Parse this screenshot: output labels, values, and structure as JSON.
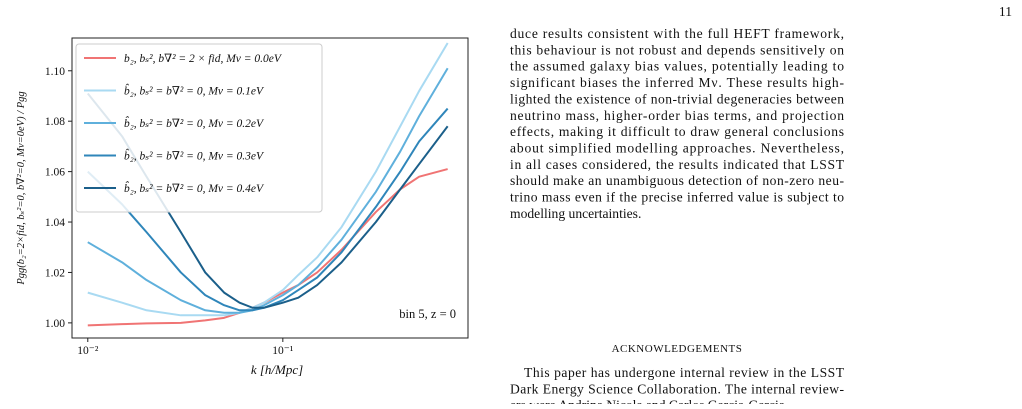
{
  "page_number": "11",
  "chart_data": {
    "type": "line",
    "xscale": "log",
    "grid": false,
    "legend_loc": "upper left",
    "xlabel": "k [h/Mpc]",
    "ylabel": "Pgg(b₂=2×fid, bₛ²=0, b∇²=0, Mν=0eV) / Pgg",
    "annotation": "bin 5, z = 0",
    "x": [
      0.01,
      0.015,
      0.02,
      0.03,
      0.04,
      0.05,
      0.06,
      0.07,
      0.08,
      0.1,
      0.12,
      0.15,
      0.2,
      0.3,
      0.4,
      0.5,
      0.7
    ],
    "xlim": [
      0.0083,
      0.89
    ],
    "xticks": [
      {
        "value": 0.01,
        "label": "10⁻²"
      },
      {
        "value": 0.1,
        "label": "10⁻¹"
      }
    ],
    "ylim": [
      0.994,
      1.113
    ],
    "yticks": [
      {
        "value": 1,
        "label": "1.00"
      },
      1.02,
      1.04,
      1.06,
      1.08,
      {
        "value": 1.1,
        "label": "1.10"
      }
    ],
    "series": [
      {
        "name": "b₂, bₛ², b∇² = 2 × fid, Mν = 0.0eV",
        "color": "#f07474",
        "values": [
          0.999,
          0.9995,
          0.9998,
          1.0,
          1.001,
          1.002,
          1.004,
          1.006,
          1.008,
          1.012,
          1.015,
          1.02,
          1.029,
          1.044,
          1.053,
          1.058,
          1.061
        ]
      },
      {
        "name": "b̂₂, bₛ² = b∇² = 0, Mν = 0.1eV",
        "color": "#a9daf2",
        "values": [
          1.012,
          1.008,
          1.005,
          1.003,
          1.003,
          1.003,
          1.004,
          1.006,
          1.008,
          1.013,
          1.019,
          1.026,
          1.038,
          1.06,
          1.078,
          1.092,
          1.111
        ]
      },
      {
        "name": "b̂₂, bₛ² = b∇² = 0, Mν = 0.2eV",
        "color": "#5fb0dc",
        "values": [
          1.032,
          1.024,
          1.017,
          1.009,
          1.005,
          1.004,
          1.004,
          1.005,
          1.007,
          1.011,
          1.015,
          1.022,
          1.033,
          1.052,
          1.068,
          1.082,
          1.101
        ]
      },
      {
        "name": "b̂₂, bₛ² = b∇² = 0, Mν = 0.3eV",
        "color": "#2f86ba",
        "values": [
          1.06,
          1.047,
          1.036,
          1.02,
          1.011,
          1.007,
          1.005,
          1.005,
          1.006,
          1.009,
          1.013,
          1.018,
          1.028,
          1.046,
          1.06,
          1.072,
          1.085
        ]
      },
      {
        "name": "b̂₂, bₛ² = b∇² = 0, Mν = 0.4eV",
        "color": "#1b5f8a",
        "values": [
          1.091,
          1.074,
          1.058,
          1.036,
          1.02,
          1.012,
          1.008,
          1.006,
          1.006,
          1.008,
          1.01,
          1.015,
          1.024,
          1.04,
          1.053,
          1.063,
          1.078
        ]
      }
    ]
  },
  "text": {
    "paragraph1": [
      "duce results consistent with the full HEFT framework,",
      "this behaviour is not robust and depends sensitively on",
      "the assumed galaxy bias values, potentially leading to",
      "significant biases the inferred Mν. These results high-",
      "lighted the existence of non-trivial degeneracies between",
      "neutrino mass, higher-order bias terms, and projection",
      "effects, making it difficult to draw general conclusions",
      "about simplified modelling approaches. Nevertheless,",
      "in all cases considered, the results indicated that LSST",
      "should make an unambiguous detection of non-zero neu-",
      "trino mass even if the precise inferred value is subject to",
      "modelling uncertainties."
    ],
    "heading": "ACKNOWLEDGEMENTS",
    "paragraph2": [
      "This paper has undergone internal review in the LSST",
      "Dark Energy Science Collaboration. The internal review-",
      "ers were Andrina Nicola and Carlos Garcia-Garcia."
    ]
  }
}
